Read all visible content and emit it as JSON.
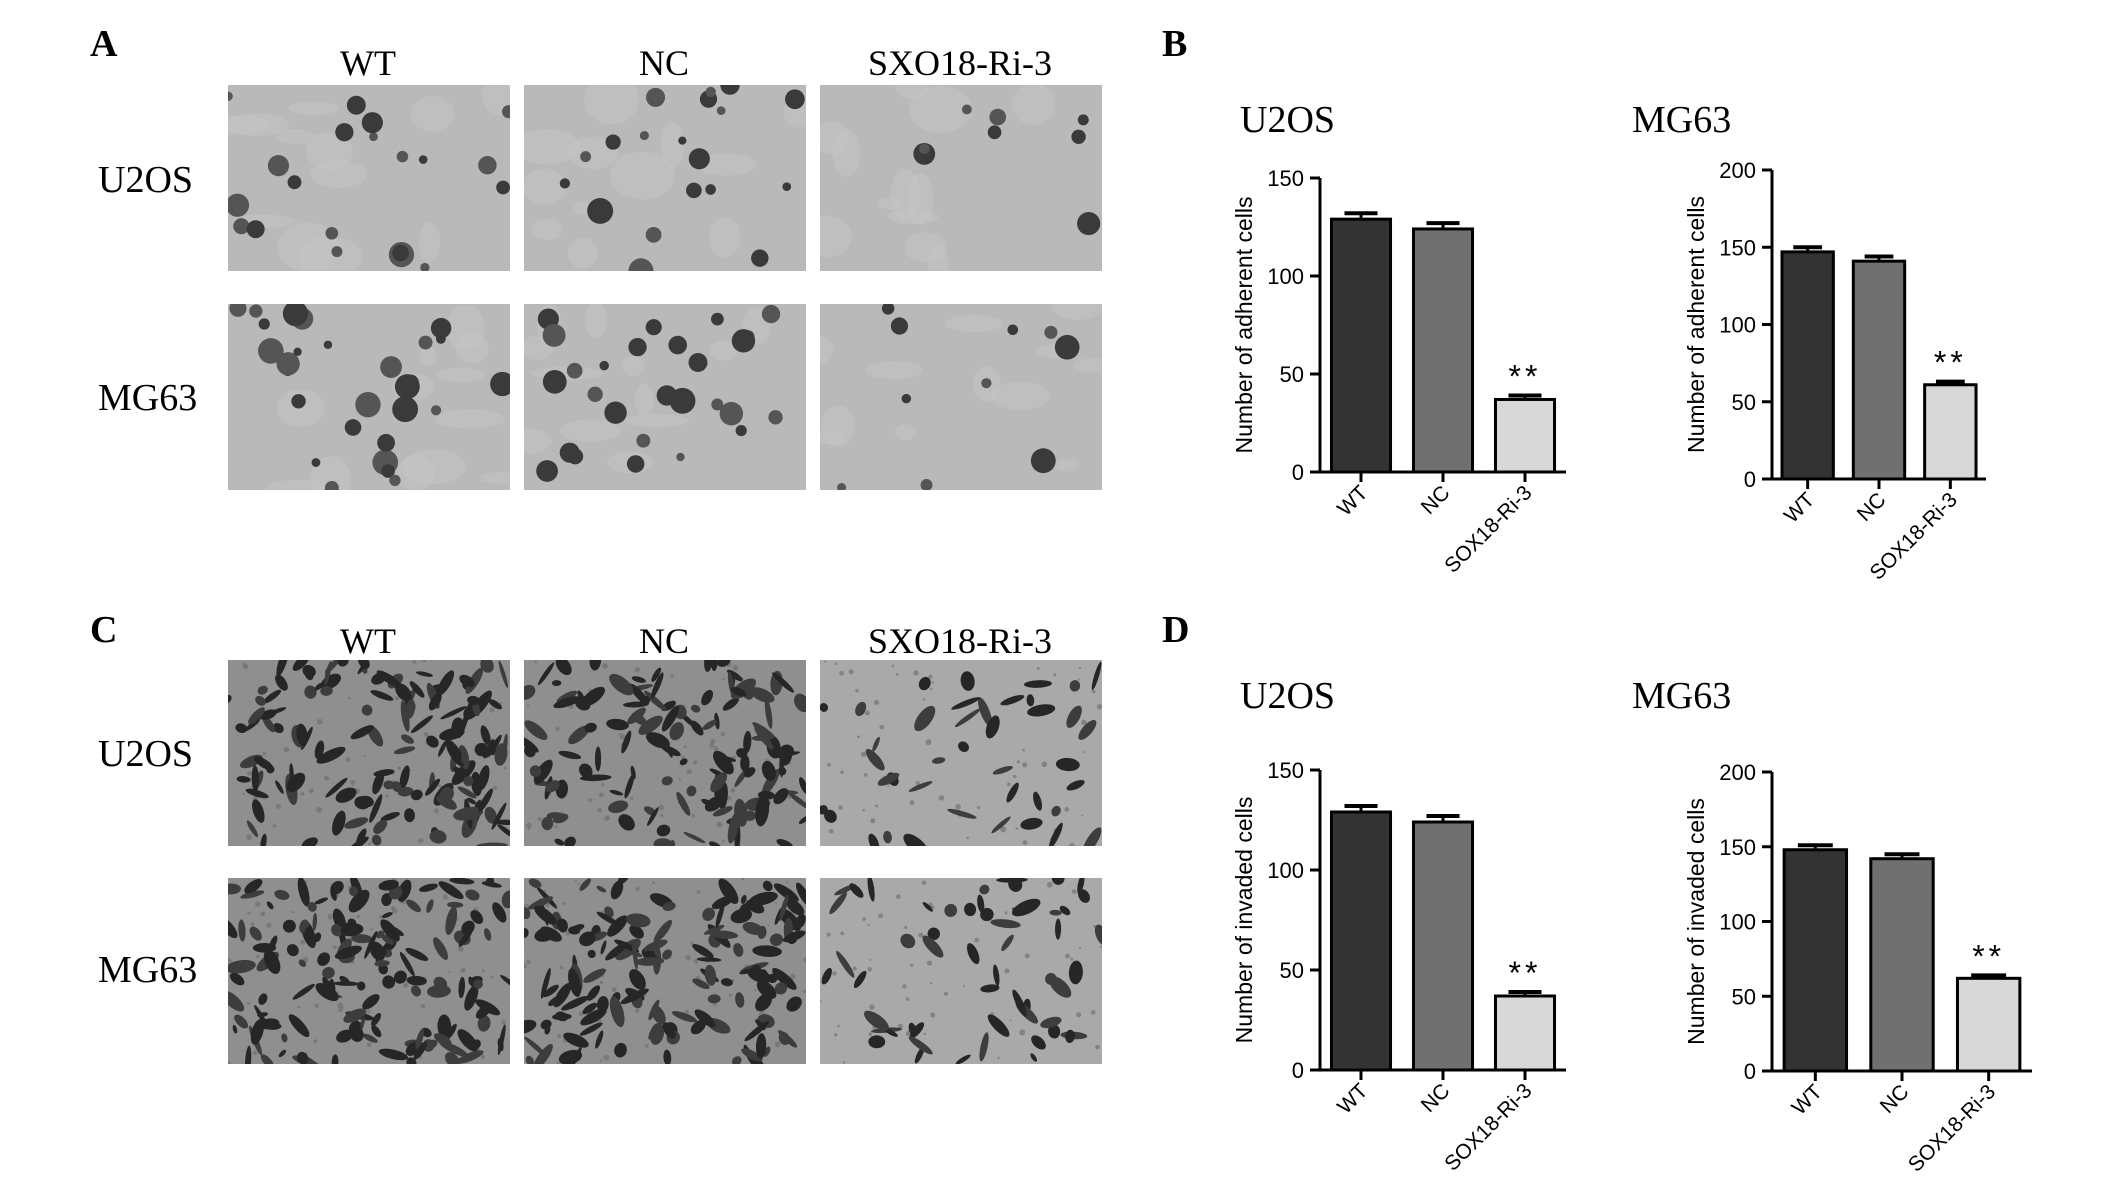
{
  "panels": {
    "A": {
      "letter": "A",
      "columns": [
        "WT",
        "NC",
        "SXO18-Ri-3"
      ],
      "rows": [
        "U2OS",
        "MG63"
      ]
    },
    "B": {
      "letter": "B"
    },
    "C": {
      "letter": "C",
      "columns": [
        "WT",
        "NC",
        "SXO18-Ri-3"
      ],
      "rows": [
        "U2OS",
        "MG63"
      ]
    },
    "D": {
      "letter": "D"
    }
  },
  "images": {
    "adhesion_wt_u2os": "Adhesion WT U2OS",
    "adhesion_nc_u2os": "Adhesion NC U2OS",
    "adhesion_ri_u2os": "Adhesion SXO18-Ri-3 U2OS",
    "adhesion_wt_mg63": "Adhesion WT MG63",
    "adhesion_nc_mg63": "Adhesion NC MG63",
    "adhesion_ri_mg63": "Adhesion SXO18-Ri-3 MG63",
    "invasion_wt_u2os": "Invasion WT U2OS",
    "invasion_nc_u2os": "Invasion NC U2OS",
    "invasion_ri_u2os": "Invasion SXO18-Ri-3 U2OS",
    "invasion_wt_mg63": "Invasion WT MG63",
    "invasion_nc_mg63": "Invasion NC MG63",
    "invasion_ri_mg63": "Invasion SXO18-Ri-3 MG63"
  },
  "chart_data": [
    {
      "id": "B-U2OS",
      "type": "bar",
      "title": "U2OS",
      "categories": [
        "WT",
        "NC",
        "SOX18-Ri-3"
      ],
      "values": [
        129,
        124,
        37
      ],
      "errors": [
        3,
        3,
        2
      ],
      "ylabel": "Number of adherent cells",
      "xlabel": "",
      "ylim": [
        0,
        150
      ],
      "yticks": [
        "0",
        "50",
        "100",
        "150"
      ],
      "colors": [
        "#333333",
        "#707070",
        "#d8d8d8"
      ],
      "annotations": [
        {
          "category": "SOX18-Ri-3",
          "text": "**"
        }
      ],
      "grid": false
    },
    {
      "id": "B-MG63",
      "type": "bar",
      "title": "MG63",
      "categories": [
        "WT",
        "NC",
        "SOX18-Ri-3"
      ],
      "values": [
        147,
        141,
        61
      ],
      "errors": [
        3,
        3,
        2
      ],
      "ylabel": "Number of adherent cells",
      "xlabel": "",
      "ylim": [
        0,
        200
      ],
      "yticks": [
        "0",
        "50",
        "100",
        "150",
        "200"
      ],
      "colors": [
        "#333333",
        "#707070",
        "#d8d8d8"
      ],
      "annotations": [
        {
          "category": "SOX18-Ri-3",
          "text": "**"
        }
      ],
      "grid": false
    },
    {
      "id": "D-U2OS",
      "type": "bar",
      "title": "U2OS",
      "categories": [
        "WT",
        "NC",
        "SOX18-Ri-3"
      ],
      "values": [
        129,
        124,
        37
      ],
      "errors": [
        3,
        3,
        2
      ],
      "ylabel": "Number of invaded cells",
      "xlabel": "",
      "ylim": [
        0,
        150
      ],
      "yticks": [
        "0",
        "50",
        "100",
        "150"
      ],
      "colors": [
        "#333333",
        "#707070",
        "#d8d8d8"
      ],
      "annotations": [
        {
          "category": "SOX18-Ri-3",
          "text": "**"
        }
      ],
      "grid": false
    },
    {
      "id": "D-MG63",
      "type": "bar",
      "title": "MG63",
      "categories": [
        "WT",
        "NC",
        "SOX18-Ri-3"
      ],
      "values": [
        148,
        142,
        62
      ],
      "errors": [
        3,
        3,
        2
      ],
      "ylabel": "Number of invaded cells",
      "xlabel": "",
      "ylim": [
        0,
        200
      ],
      "yticks": [
        "0",
        "50",
        "100",
        "150",
        "200"
      ],
      "colors": [
        "#333333",
        "#707070",
        "#d8d8d8"
      ],
      "annotations": [
        {
          "category": "SOX18-Ri-3",
          "text": "**"
        }
      ],
      "grid": false
    }
  ]
}
